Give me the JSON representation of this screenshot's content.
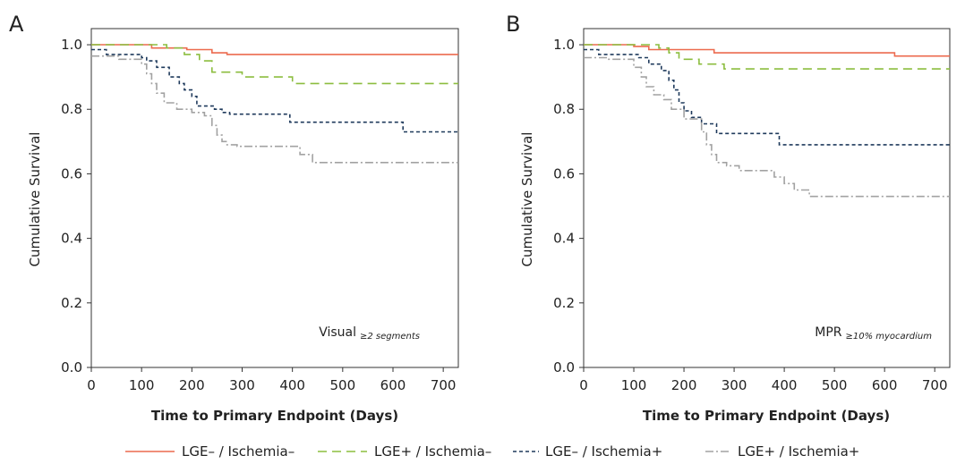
{
  "series_styles": [
    {
      "color": "#ec6a4e",
      "dash": ""
    },
    {
      "color": "#8cbd3f",
      "dash": "10,6"
    },
    {
      "color": "#1f3a5c",
      "dash": "4,3"
    },
    {
      "color": "#a2a2a2",
      "dash": "9,3,2,3"
    }
  ],
  "legend": {
    "items": [
      {
        "label": "LGE– / Ischemia–"
      },
      {
        "label": "LGE+ / Ischemia–"
      },
      {
        "label": "LGE– / Ischemia+"
      },
      {
        "label": "LGE+ / Ischemia+"
      }
    ]
  },
  "chart_data": [
    {
      "type": "line",
      "panel": "A",
      "xlabel": "Time to Primary Endpoint (Days)",
      "ylabel": "Cumulative Survival",
      "xlim": [
        0,
        730
      ],
      "ylim": [
        0,
        1.05
      ],
      "xticks": [
        0,
        100,
        200,
        300,
        400,
        500,
        600,
        700
      ],
      "yticks": [
        "0.0",
        "0.2",
        "0.4",
        "0.6",
        "0.8",
        "1.0"
      ],
      "annotation": {
        "main": "Visual",
        "sub": "≥2 segments"
      },
      "series": [
        {
          "name": "LGE– / Ischemia–",
          "step": true,
          "x": [
            0,
            120,
            190,
            240,
            270,
            730
          ],
          "y": [
            1.0,
            0.99,
            0.985,
            0.975,
            0.97,
            0.97
          ]
        },
        {
          "name": "LGE+ / Ischemia–",
          "step": true,
          "x": [
            0,
            150,
            185,
            215,
            240,
            300,
            400,
            730
          ],
          "y": [
            1.0,
            0.99,
            0.97,
            0.95,
            0.915,
            0.9,
            0.88,
            0.88
          ]
        },
        {
          "name": "LGE– / Ischemia+",
          "step": true,
          "x": [
            0,
            30,
            100,
            110,
            130,
            155,
            175,
            185,
            200,
            210,
            245,
            260,
            275,
            395,
            620,
            730
          ],
          "y": [
            0.985,
            0.97,
            0.96,
            0.95,
            0.93,
            0.9,
            0.88,
            0.86,
            0.84,
            0.81,
            0.8,
            0.79,
            0.785,
            0.76,
            0.73,
            0.73
          ]
        },
        {
          "name": "LGE+ / Ischemia+",
          "step": true,
          "x": [
            0,
            55,
            100,
            110,
            120,
            130,
            145,
            170,
            200,
            225,
            240,
            250,
            260,
            270,
            290,
            415,
            440,
            730
          ],
          "y": [
            0.965,
            0.955,
            0.94,
            0.91,
            0.88,
            0.85,
            0.82,
            0.8,
            0.79,
            0.78,
            0.75,
            0.72,
            0.7,
            0.69,
            0.685,
            0.66,
            0.635,
            0.635
          ]
        }
      ]
    },
    {
      "type": "line",
      "panel": "B",
      "xlabel": "Time to Primary Endpoint (Days)",
      "ylabel": "Cumulative Survival",
      "xlim": [
        0,
        730
      ],
      "ylim": [
        0,
        1.05
      ],
      "xticks": [
        0,
        100,
        200,
        300,
        400,
        500,
        600,
        700
      ],
      "yticks": [
        "0.0",
        "0.2",
        "0.4",
        "0.6",
        "0.8",
        "1.0"
      ],
      "annotation": {
        "main": "MPR",
        "sub": "≥10% myocardium"
      },
      "series": [
        {
          "name": "LGE– / Ischemia–",
          "step": true,
          "x": [
            0,
            100,
            130,
            260,
            620,
            730
          ],
          "y": [
            1.0,
            0.995,
            0.985,
            0.975,
            0.965,
            0.965
          ]
        },
        {
          "name": "LGE+ / Ischemia–",
          "step": true,
          "x": [
            0,
            150,
            170,
            190,
            230,
            280,
            730
          ],
          "y": [
            1.0,
            0.99,
            0.975,
            0.955,
            0.94,
            0.925,
            0.925
          ]
        },
        {
          "name": "LGE– / Ischemia+",
          "step": true,
          "x": [
            0,
            30,
            110,
            130,
            155,
            170,
            180,
            190,
            200,
            215,
            235,
            265,
            390,
            730
          ],
          "y": [
            0.985,
            0.97,
            0.96,
            0.94,
            0.92,
            0.89,
            0.86,
            0.82,
            0.795,
            0.775,
            0.755,
            0.725,
            0.69,
            0.69
          ]
        },
        {
          "name": "LGE+ / Ischemia+",
          "step": true,
          "x": [
            0,
            50,
            100,
            115,
            125,
            140,
            160,
            175,
            200,
            235,
            245,
            255,
            265,
            285,
            310,
            380,
            400,
            420,
            450,
            730
          ],
          "y": [
            0.96,
            0.955,
            0.93,
            0.9,
            0.87,
            0.845,
            0.83,
            0.8,
            0.77,
            0.73,
            0.69,
            0.66,
            0.635,
            0.625,
            0.61,
            0.59,
            0.57,
            0.55,
            0.53,
            0.53
          ]
        }
      ]
    }
  ]
}
